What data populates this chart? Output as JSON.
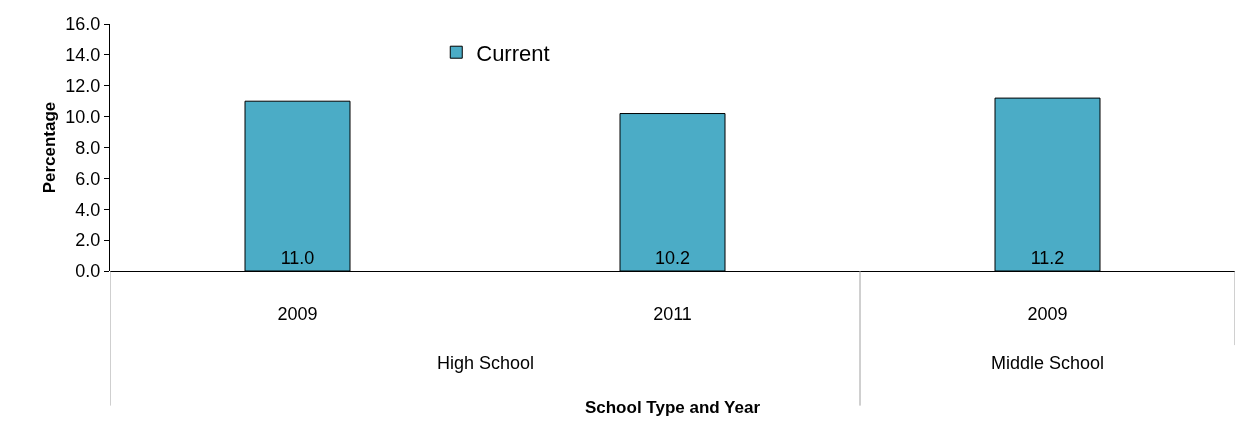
{
  "chart_data": {
    "type": "bar",
    "xlabel": "School Type and Year",
    "ylabel": "Percentage",
    "categories": [
      "2009",
      "2011",
      "2009"
    ],
    "series": [
      {
        "name": "Current",
        "color": "#4bacc6",
        "values": [
          11.0,
          10.2,
          11.2
        ],
        "value_labels": [
          "11.0",
          "10.2",
          "11.2"
        ]
      }
    ],
    "ylim": [
      0,
      16
    ],
    "yticks": [
      {
        "value": 0,
        "label": "0.0"
      },
      {
        "value": 2,
        "label": "2.0"
      },
      {
        "value": 4,
        "label": "4.0"
      },
      {
        "value": 6,
        "label": "6.0"
      },
      {
        "value": 8,
        "label": "8.0"
      },
      {
        "value": 10,
        "label": "10.0"
      },
      {
        "value": 12,
        "label": "12.0"
      },
      {
        "value": 14,
        "label": "14.0"
      },
      {
        "value": 16,
        "label": "16.0"
      }
    ],
    "annotations": [
      "High School",
      "Middle School"
    ],
    "grid": false,
    "legend": "top"
  }
}
